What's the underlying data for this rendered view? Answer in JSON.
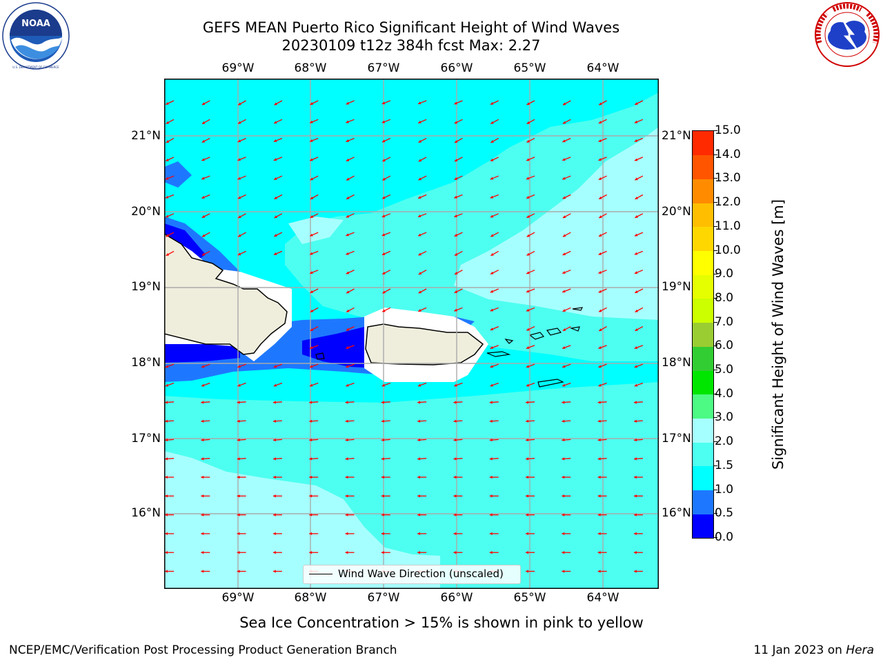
{
  "header": {
    "title_line1": "GEFS MEAN Puerto Rico Significant Height of Wind Waves",
    "title_line2": "20230109 t12z 384h fcst   Max: 2.27"
  },
  "map": {
    "lon_labels": [
      "69°W",
      "68°W",
      "67°W",
      "66°W",
      "65°W",
      "64°W"
    ],
    "lat_labels": [
      "21°N",
      "20°N",
      "19°N",
      "18°N",
      "17°N",
      "16°N"
    ],
    "legend_label": "Wind Wave Direction (unscaled)",
    "arrow_color": "#ff0000",
    "prevailing_direction": "toward west-southwest"
  },
  "colorbar": {
    "label": "Significant Height of Wind Waves [m]",
    "ticks": [
      "0.0",
      "0.5",
      "1.0",
      "1.5",
      "2.0",
      "3.0",
      "4.0",
      "5.0",
      "6.0",
      "7.0",
      "8.0",
      "9.0",
      "10.0",
      "11.0",
      "12.0",
      "13.0",
      "14.0",
      "15.0"
    ],
    "colors": [
      "#0000ff",
      "#1e78ff",
      "#00ffff",
      "#4dfff0",
      "#a6ffff",
      "#4cfa84",
      "#00e600",
      "#32cd32",
      "#9acd32",
      "#ccff00",
      "#e6ff00",
      "#ffff00",
      "#ffd700",
      "#ffbf00",
      "#ff8c00",
      "#ff5500",
      "#ff2a00"
    ]
  },
  "footer": {
    "note": "Sea Ice Concentration > 15% is shown in pink to yellow",
    "credit": "NCEP/EMC/Verification Post Processing Product Generation Branch",
    "date": "11 Jan 2023 on",
    "host": "Hera"
  },
  "logos": {
    "noaa": "NOAA",
    "noaa_ring": "NATIONAL OCEANIC AND ATMOSPHERIC ADMINISTRATION · U.S. DEPARTMENT OF COMMERCE",
    "nws_ring": "NATIONAL WEATHER SERVICE"
  }
}
